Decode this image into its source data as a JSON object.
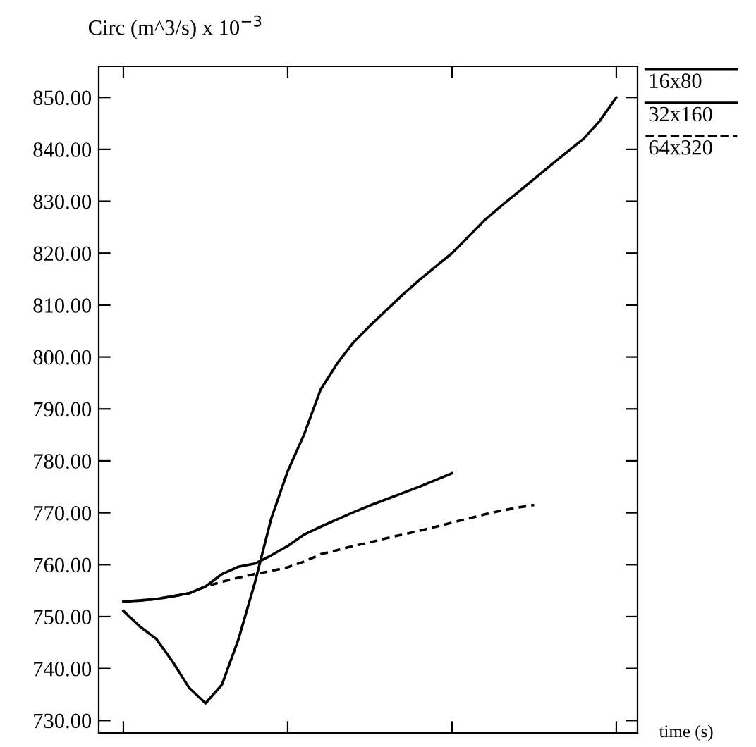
{
  "chart_data": {
    "type": "line",
    "ylabel": "Circ (m^3/s) x 10$^{−3}$",
    "xlabel": "time (s)",
    "categories": [
      null,
      null,
      null,
      null,
      null,
      null,
      null,
      null,
      null,
      null,
      null,
      null,
      null,
      null,
      null,
      null,
      null,
      null,
      null,
      null,
      null,
      null,
      null,
      null,
      null,
      null,
      null,
      null,
      null,
      null,
      null
    ],
    "ylim": [
      727.6,
      856
    ],
    "yticks": [
      {
        "value": 730,
        "label": "730.00"
      },
      {
        "value": 740,
        "label": "740.00"
      },
      {
        "value": 750,
        "label": "750.00"
      },
      {
        "value": 760,
        "label": "760.00"
      },
      {
        "value": 770,
        "label": "770.00"
      },
      {
        "value": 780,
        "label": "780.00"
      },
      {
        "value": 790,
        "label": "790.00"
      },
      {
        "value": 800,
        "label": "800.00"
      },
      {
        "value": 810,
        "label": "810.00"
      },
      {
        "value": 820,
        "label": "820.00"
      },
      {
        "value": 830,
        "label": "830.00"
      },
      {
        "value": 840,
        "label": "840.00"
      },
      {
        "value": 850,
        "label": "850.00"
      }
    ],
    "grid": false,
    "legend": "right",
    "marker": "none",
    "series": [
      {
        "name": "16x80",
        "color": "#000000",
        "line_style": "solid",
        "values": [
          751.1,
          748.1,
          745.7,
          741.3,
          736.3,
          733.3,
          736.9,
          745.6,
          756.5,
          768.9,
          778,
          785.1,
          793.7,
          798.7,
          802.8,
          806,
          809,
          812,
          814.8,
          817.4,
          820,
          823.2,
          826.4,
          829.1,
          831.7,
          834.3,
          836.9,
          839.5,
          842,
          845.5,
          850
        ]
      },
      {
        "name": "32x160",
        "color": "#000000",
        "line_style": "solid",
        "values": [
          752.9,
          753.1,
          753.4,
          753.9,
          754.5,
          755.8,
          758.2,
          759.6,
          760.2,
          761.8,
          763.6,
          765.8,
          767.3,
          768.7,
          770.1,
          771.4,
          772.6,
          773.8,
          775,
          776.3,
          777.6,
          null,
          null,
          null,
          null,
          null,
          null,
          null,
          null,
          null,
          null
        ]
      },
      {
        "name": "64x320",
        "color": "#000000",
        "line_style": "dashed",
        "values": [
          752.9,
          753.1,
          753.4,
          753.9,
          754.5,
          755.8,
          756.7,
          757.5,
          758.2,
          758.8,
          759.5,
          760.6,
          762,
          762.8,
          763.6,
          764.3,
          765.1,
          765.8,
          766.5,
          767.3,
          768.1,
          768.9,
          769.7,
          770.4,
          771,
          771.5,
          null,
          null,
          null,
          null,
          null
        ]
      }
    ]
  }
}
